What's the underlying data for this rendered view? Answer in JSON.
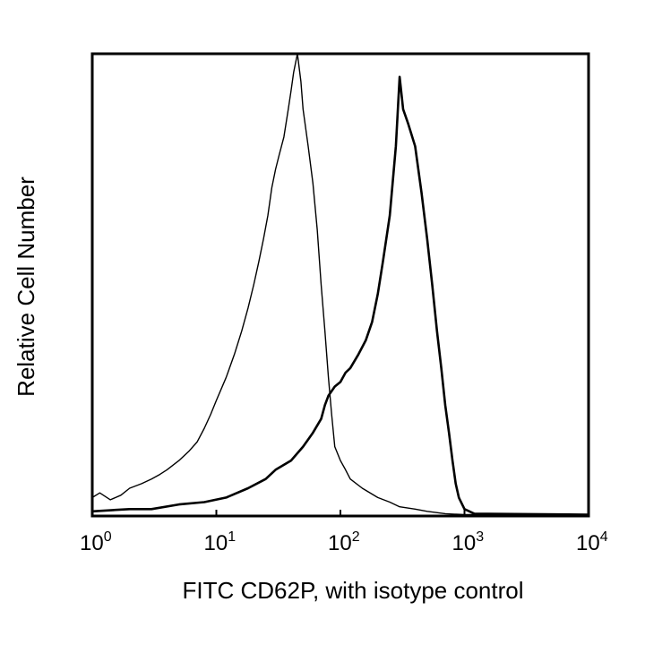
{
  "chart_data": {
    "type": "line",
    "title": "",
    "xlabel": "FITC CD62P, with isotype control",
    "ylabel": "Relative Cell Number",
    "x_scale": "log",
    "xlim": [
      1,
      10000
    ],
    "ylim": [
      0,
      100
    ],
    "x_ticks": [
      {
        "base": "10",
        "exp": "0",
        "value": 1
      },
      {
        "base": "10",
        "exp": "1",
        "value": 10
      },
      {
        "base": "10",
        "exp": "2",
        "value": 100
      },
      {
        "base": "10",
        "exp": "3",
        "value": 1000
      },
      {
        "base": "10",
        "exp": "4",
        "value": 10000
      }
    ],
    "grid": false,
    "legend": "none",
    "series": [
      {
        "style": "thin",
        "color": "#000000",
        "points": [
          [
            1.0,
            4
          ],
          [
            1.15,
            5
          ],
          [
            1.4,
            3.5
          ],
          [
            1.7,
            4.5
          ],
          [
            2.0,
            6
          ],
          [
            2.5,
            7
          ],
          [
            3.0,
            8
          ],
          [
            3.5,
            9
          ],
          [
            4.0,
            10
          ],
          [
            5.0,
            12
          ],
          [
            6.0,
            14
          ],
          [
            7.0,
            16
          ],
          [
            8.0,
            19
          ],
          [
            9.0,
            22
          ],
          [
            10,
            25
          ],
          [
            12,
            30
          ],
          [
            14,
            35
          ],
          [
            16,
            40
          ],
          [
            18,
            45
          ],
          [
            20,
            50
          ],
          [
            22,
            55
          ],
          [
            24,
            60
          ],
          [
            26,
            65
          ],
          [
            28,
            71
          ],
          [
            30,
            75
          ],
          [
            32,
            78
          ],
          [
            35,
            82
          ],
          [
            38,
            88
          ],
          [
            40,
            92
          ],
          [
            42,
            96
          ],
          [
            45,
            100
          ],
          [
            48,
            94
          ],
          [
            50,
            88
          ],
          [
            55,
            80
          ],
          [
            60,
            72
          ],
          [
            65,
            62
          ],
          [
            70,
            50
          ],
          [
            75,
            40
          ],
          [
            80,
            30
          ],
          [
            85,
            22
          ],
          [
            90,
            15
          ],
          [
            100,
            12
          ],
          [
            110,
            10
          ],
          [
            120,
            8
          ],
          [
            150,
            6
          ],
          [
            200,
            4
          ],
          [
            250,
            3
          ],
          [
            300,
            2
          ],
          [
            400,
            1.5
          ],
          [
            500,
            1
          ],
          [
            700,
            0.5
          ],
          [
            1000,
            0.3
          ],
          [
            10000,
            0.3
          ]
        ]
      },
      {
        "style": "thick",
        "color": "#000000",
        "points": [
          [
            1.0,
            1
          ],
          [
            2.0,
            1.5
          ],
          [
            3.0,
            1.5
          ],
          [
            5.0,
            2.5
          ],
          [
            8.0,
            3
          ],
          [
            12,
            4
          ],
          [
            18,
            6
          ],
          [
            25,
            8
          ],
          [
            30,
            10
          ],
          [
            40,
            12
          ],
          [
            50,
            15
          ],
          [
            60,
            18
          ],
          [
            70,
            21
          ],
          [
            75,
            24
          ],
          [
            80,
            26
          ],
          [
            90,
            28
          ],
          [
            100,
            29
          ],
          [
            110,
            31
          ],
          [
            120,
            32
          ],
          [
            140,
            35
          ],
          [
            160,
            38
          ],
          [
            180,
            42
          ],
          [
            200,
            48
          ],
          [
            220,
            55
          ],
          [
            250,
            65
          ],
          [
            280,
            80
          ],
          [
            300,
            95
          ],
          [
            320,
            88
          ],
          [
            350,
            85
          ],
          [
            400,
            80
          ],
          [
            450,
            70
          ],
          [
            500,
            60
          ],
          [
            550,
            50
          ],
          [
            600,
            40
          ],
          [
            650,
            32
          ],
          [
            700,
            24
          ],
          [
            750,
            18
          ],
          [
            800,
            12
          ],
          [
            850,
            7
          ],
          [
            900,
            4
          ],
          [
            1000,
            1.5
          ],
          [
            1200,
            0.5
          ],
          [
            10000,
            0.3
          ]
        ]
      }
    ]
  }
}
